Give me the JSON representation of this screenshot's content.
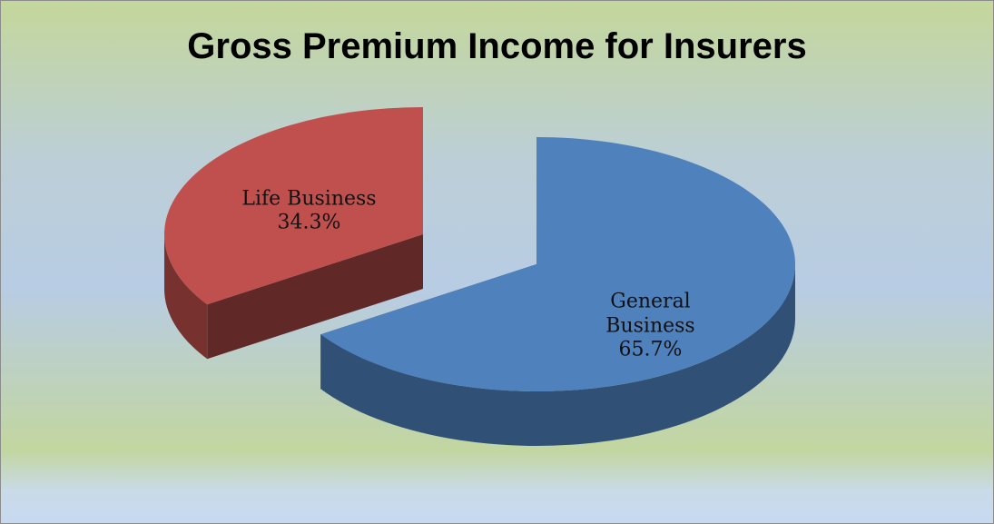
{
  "chart_data": {
    "type": "pie",
    "title": "Gross Premium Income for Insurers",
    "categories": [
      "General Business",
      "Life Business"
    ],
    "values": [
      65.7,
      34.3
    ],
    "value_labels": [
      "65.7%",
      "34.3%"
    ],
    "colors": [
      "#4f81bd",
      "#c0504d"
    ],
    "explode": [
      false,
      true
    ],
    "three_d": true
  }
}
